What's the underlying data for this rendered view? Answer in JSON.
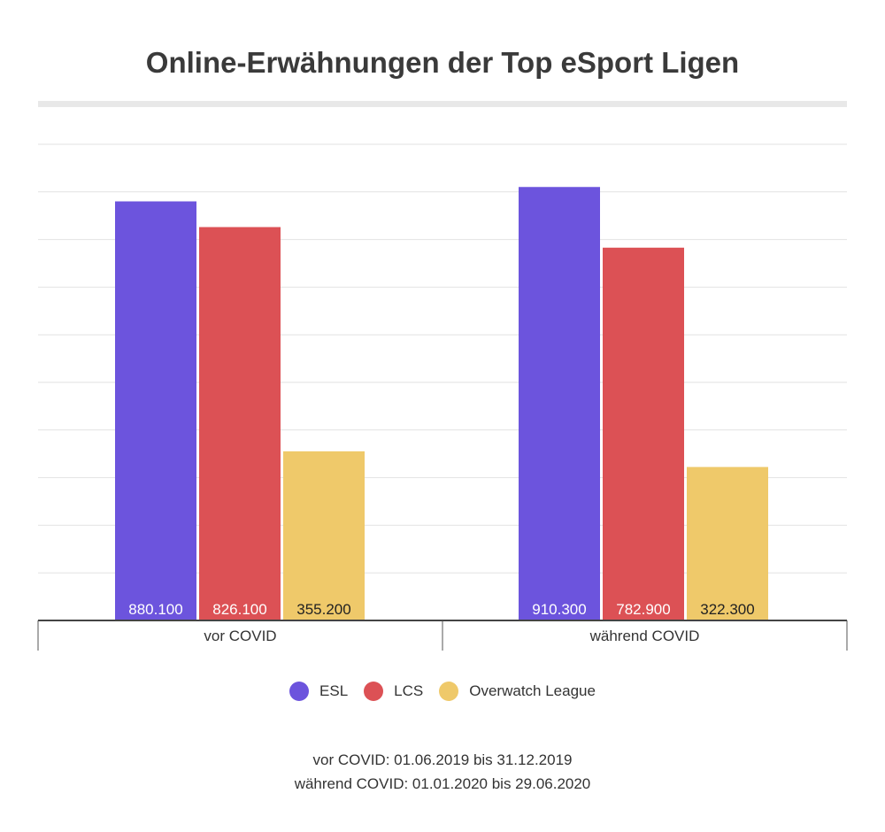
{
  "chart_data": {
    "type": "bar",
    "title": "Online-Erwähnungen der Top eSport Ligen",
    "categories": [
      "vor COVID",
      "während COVID"
    ],
    "series": [
      {
        "name": "ESL",
        "color": "#6c54dd",
        "values": [
          880100,
          910300
        ],
        "labels": [
          "880.100",
          "910.300"
        ],
        "label_color": "#ffffff"
      },
      {
        "name": "LCS",
        "color": "#dc5155",
        "values": [
          826100,
          782900
        ],
        "labels": [
          "826.100",
          "782.900"
        ],
        "label_color": "#ffffff"
      },
      {
        "name": "Overwatch League",
        "color": "#efc96a",
        "values": [
          355200,
          322300
        ],
        "labels": [
          "355.200",
          "322.300"
        ],
        "label_color": "#222222"
      }
    ],
    "ylim": [
      0,
      1000000
    ],
    "grid": true,
    "legend": "bottom"
  },
  "footnote": {
    "line1": "vor COVID: 01.06.2019 bis 31.12.2019",
    "line2": "während COVID: 01.01.2020 bis 29.06.2020"
  }
}
